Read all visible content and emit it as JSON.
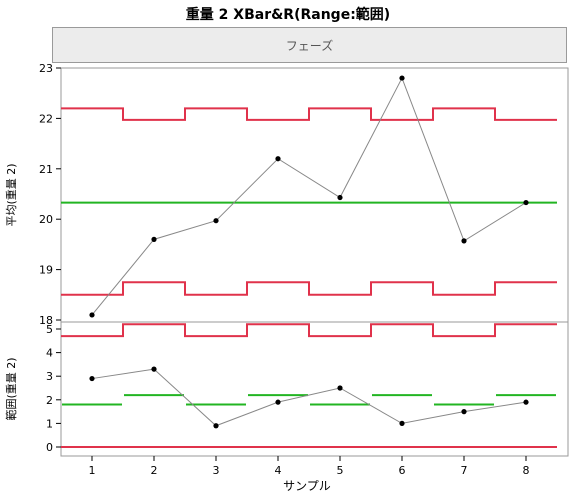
{
  "title": "重量 2  XBar&R(Range:範囲)",
  "phase_label": "フェーズ",
  "xlabel": "サンプル",
  "colors": {
    "limit": "#e0324b",
    "center": "#22b522",
    "data": "#888888",
    "point": "#000000"
  },
  "chart_data": [
    {
      "type": "line",
      "name": "xbar",
      "ylabel": "平均(重量 2)",
      "ylim": [
        18,
        23
      ],
      "yticks": [
        18,
        19,
        20,
        21,
        22,
        23
      ],
      "x": [
        1,
        2,
        3,
        4,
        5,
        6,
        7,
        8
      ],
      "values": [
        18.1,
        19.6,
        19.97,
        21.2,
        20.43,
        22.8,
        19.57,
        20.33
      ],
      "center": 20.33,
      "ucl": [
        22.2,
        21.97,
        22.2,
        21.97,
        22.2,
        21.97,
        22.2,
        21.97
      ],
      "lcl": [
        18.5,
        18.75,
        18.5,
        18.75,
        18.5,
        18.75,
        18.5,
        18.75
      ]
    },
    {
      "type": "line",
      "name": "range",
      "ylabel": "範囲(重量 2)",
      "ylim": [
        0,
        5
      ],
      "yticks": [
        0,
        1,
        2,
        3,
        4,
        5
      ],
      "x": [
        1,
        2,
        3,
        4,
        5,
        6,
        7,
        8
      ],
      "values": [
        2.9,
        3.3,
        0.9,
        1.9,
        2.5,
        1.0,
        1.5,
        1.9
      ],
      "center": [
        1.8,
        2.2,
        1.8,
        2.2,
        1.8,
        2.2,
        1.8,
        2.2
      ],
      "ucl": [
        4.7,
        5.2,
        4.7,
        5.2,
        4.7,
        5.2,
        4.7,
        5.2
      ],
      "lcl": [
        0,
        0,
        0,
        0,
        0,
        0,
        0,
        0
      ]
    }
  ],
  "xticks": [
    "1",
    "2",
    "3",
    "4",
    "5",
    "6",
    "7",
    "8"
  ]
}
